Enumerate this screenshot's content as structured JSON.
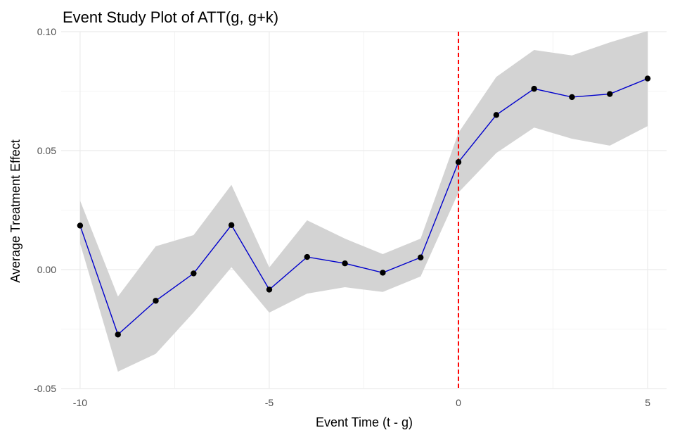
{
  "chart_data": {
    "type": "line",
    "title": "Event Study Plot of ATT(g, g+k)",
    "xlabel": "Event Time (t - g)",
    "ylabel": "Average Treatment Effect",
    "xlim": [
      -10.5,
      5.5
    ],
    "ylim": [
      -0.05,
      0.1
    ],
    "x_ticks": [
      -10,
      -5,
      0,
      5
    ],
    "x_tick_labels": [
      "-10",
      "-5",
      "0",
      "5"
    ],
    "y_ticks": [
      -0.05,
      0.0,
      0.05,
      0.1
    ],
    "y_tick_labels": [
      "-0.05",
      "0.00",
      "0.05",
      "0.10"
    ],
    "grid": true,
    "x": [
      -10,
      -9,
      -8,
      -7,
      -6,
      -5,
      -4,
      -3,
      -2,
      -1,
      0,
      1,
      2,
      3,
      4,
      5
    ],
    "series": [
      {
        "values": [
          0.0185,
          -0.0273,
          -0.0131,
          -0.0016,
          0.0187,
          -0.0084,
          0.0053,
          0.0026,
          -0.0013,
          0.0051,
          0.0452,
          0.065,
          0.076,
          0.0725,
          0.0738,
          0.0803
        ],
        "lower": [
          0.011,
          -0.0429,
          -0.0354,
          -0.018,
          0.001,
          -0.0181,
          -0.0101,
          -0.0074,
          -0.0094,
          -0.0029,
          0.0324,
          0.049,
          0.0597,
          0.055,
          0.0521,
          0.0603
        ],
        "upper": [
          0.029,
          -0.0113,
          0.0098,
          0.0145,
          0.0356,
          0.0009,
          0.0207,
          0.013,
          0.0065,
          0.013,
          0.0575,
          0.081,
          0.0923,
          0.09,
          0.0955,
          0.1003
        ]
      }
    ],
    "reference_line": {
      "x": 0,
      "color": "#ff0000",
      "style": "dashed"
    },
    "colors": {
      "line": "#0000cc",
      "points": "#000000",
      "ribbon": "#d3d3d3",
      "grid": "#ebebeb"
    }
  }
}
